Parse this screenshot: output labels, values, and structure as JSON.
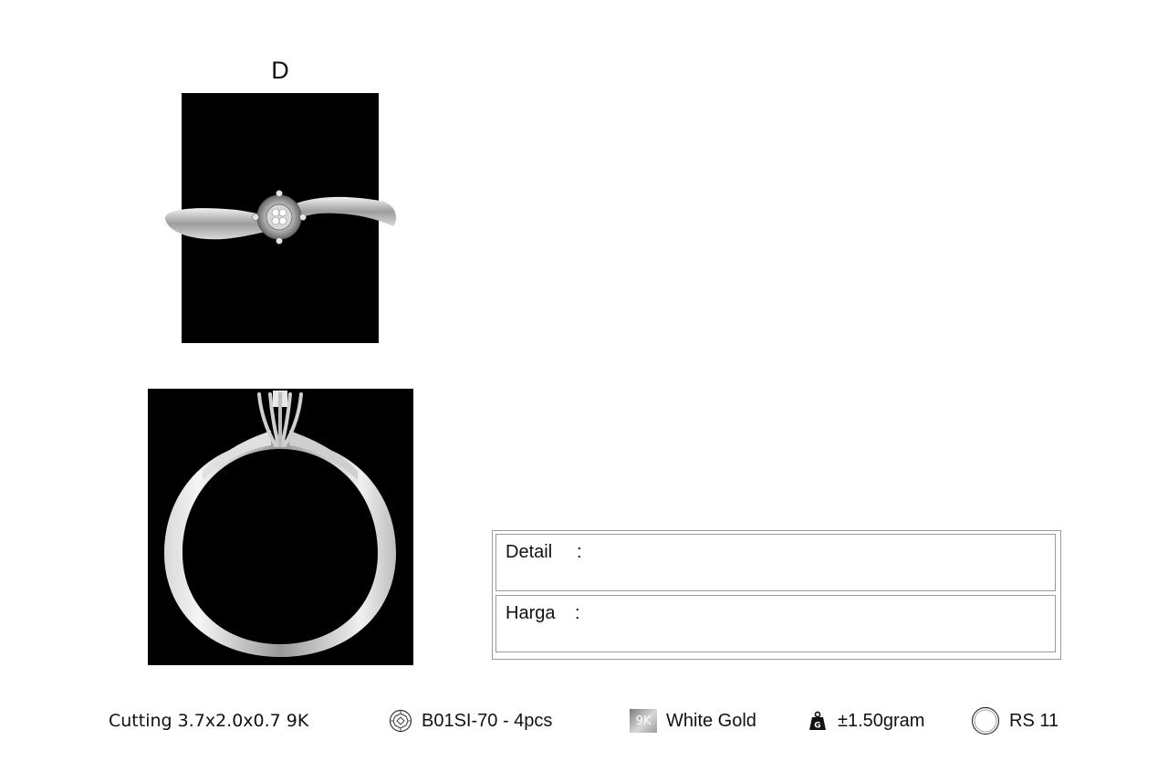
{
  "sheet": {
    "view_label": "D"
  },
  "info_table": {
    "detail_label": "Detail",
    "detail_sep": ":",
    "price_label": "Harga",
    "price_sep": ":"
  },
  "specs": {
    "cutting": "Cutting 3.7x2.0x0.7 9K",
    "stone_icon": "round-diamond-icon",
    "stone": "B01SI-70 - 4pcs",
    "karat_badge": "9K",
    "metal": "White Gold",
    "weight_icon": "weight-icon",
    "weight_badge": "G",
    "weight": "±1.50gram",
    "size_icon": "ring-size-icon",
    "size": "RS 11"
  },
  "colors": {
    "background": "#ffffff",
    "render_background": "#000000",
    "metal": "#cfcfcf",
    "border": "#9a9a9a"
  }
}
